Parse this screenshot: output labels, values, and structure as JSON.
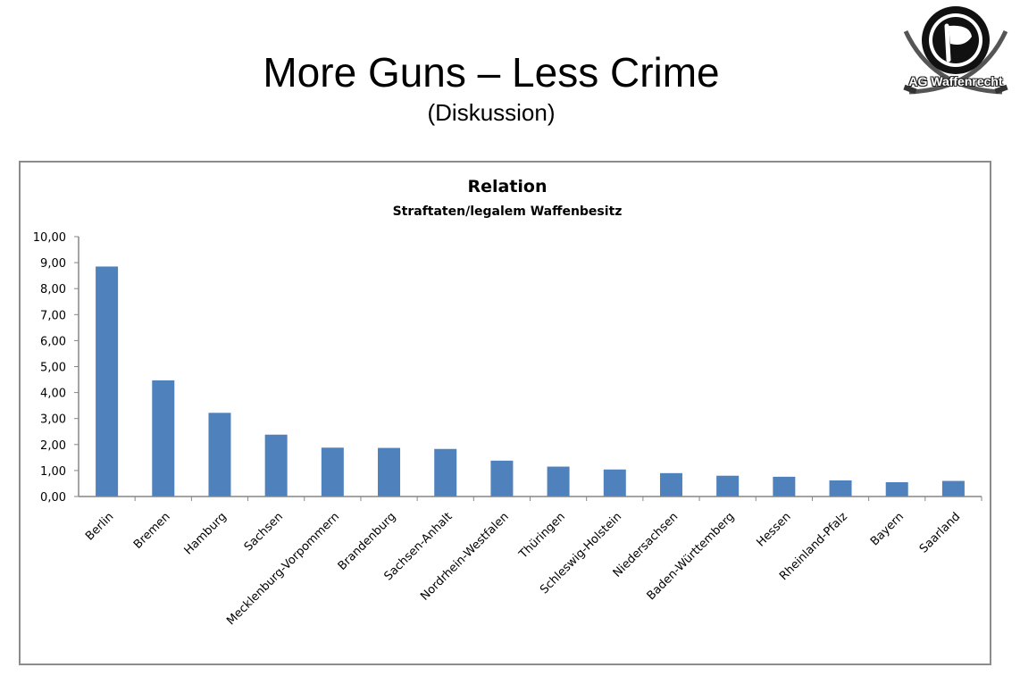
{
  "slide": {
    "title": "More Guns – Less Crime",
    "subtitle": "(Diskussion)"
  },
  "logo": {
    "text": "AG Waffenrecht",
    "icon": "pirate-flag-icon"
  },
  "chart_data": {
    "type": "bar",
    "title": "Relation",
    "subtitle": "Straftaten/legalem Waffenbesitz",
    "xlabel": "",
    "ylabel": "",
    "ylim": [
      0,
      10
    ],
    "yticks": [
      "0,00",
      "1,00",
      "2,00",
      "3,00",
      "4,00",
      "5,00",
      "6,00",
      "7,00",
      "8,00",
      "9,00",
      "10,00"
    ],
    "grid": false,
    "legend": "none",
    "bar_color": "#4f81bd",
    "categories": [
      "Berlin",
      "Bremen",
      "Hamburg",
      "Sachsen",
      "Mecklenburg-Vorpommern",
      "Brandenburg",
      "Sachsen-Anhalt",
      "Nordrhein-Westfalen",
      "Thüringen",
      "Schleswig-Holstein",
      "Niedersachsen",
      "Baden-Württemberg",
      "Hessen",
      "Rheinland-Pfalz",
      "Bayern",
      "Saarland"
    ],
    "values": [
      8.85,
      4.47,
      3.22,
      2.38,
      1.88,
      1.87,
      1.83,
      1.38,
      1.15,
      1.04,
      0.9,
      0.8,
      0.76,
      0.62,
      0.55,
      0.6
    ]
  }
}
